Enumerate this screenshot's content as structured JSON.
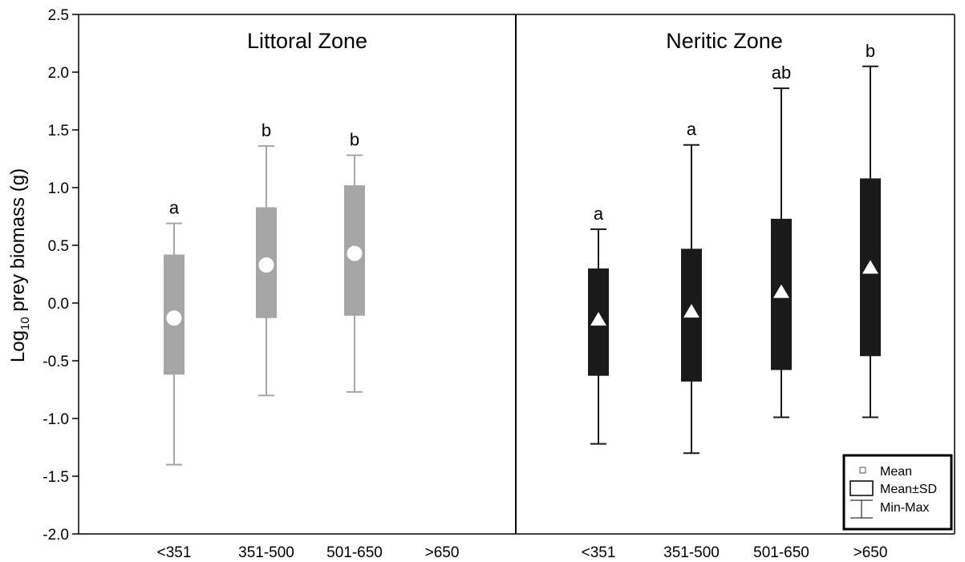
{
  "chart_data": {
    "type": "box",
    "ylabel_main": "Log",
    "ylabel_sub": "10",
    "ylabel_rest": " prey biomass (g)",
    "ylim": [
      -2.0,
      2.5
    ],
    "yticks": [
      "-2.0",
      "-1.5",
      "-1.0",
      "-0.5",
      "0.0",
      "0.5",
      "1.0",
      "1.5",
      "2.0",
      "2.5"
    ],
    "ytick_values": [
      -2.0,
      -1.5,
      -1.0,
      -0.5,
      0.0,
      0.5,
      1.0,
      1.5,
      2.0,
      2.5
    ],
    "categories": [
      "<351",
      "351-500",
      "501-650",
      ">650"
    ],
    "panels": [
      {
        "title": "Littoral Zone",
        "color": "#a6a6a6",
        "marker": "circle",
        "groups": [
          {
            "category": "<351",
            "mean": -0.13,
            "sd_low": -0.62,
            "sd_high": 0.42,
            "min": -1.4,
            "max": 0.69,
            "letter": "a"
          },
          {
            "category": "351-500",
            "mean": 0.33,
            "sd_low": -0.13,
            "sd_high": 0.83,
            "min": -0.8,
            "max": 1.36,
            "letter": "b"
          },
          {
            "category": "501-650",
            "mean": 0.43,
            "sd_low": -0.11,
            "sd_high": 1.02,
            "min": -0.77,
            "max": 1.28,
            "letter": "b"
          }
        ]
      },
      {
        "title": "Neritic Zone",
        "color": "#1a1a1a",
        "marker": "triangle",
        "groups": [
          {
            "category": "<351",
            "mean": -0.14,
            "sd_low": -0.63,
            "sd_high": 0.3,
            "min": -1.22,
            "max": 0.64,
            "letter": "a"
          },
          {
            "category": "351-500",
            "mean": -0.07,
            "sd_low": -0.68,
            "sd_high": 0.47,
            "min": -1.3,
            "max": 1.37,
            "letter": "a"
          },
          {
            "category": "501-650",
            "mean": 0.1,
            "sd_low": -0.58,
            "sd_high": 0.73,
            "min": -0.99,
            "max": 1.86,
            "letter": "ab"
          },
          {
            "category": ">650",
            "mean": 0.31,
            "sd_low": -0.46,
            "sd_high": 1.08,
            "min": -0.99,
            "max": 2.05,
            "letter": "b"
          }
        ]
      }
    ],
    "legend": {
      "placement": "bottom-right",
      "items": [
        "Mean",
        "Mean±SD",
        "Min-Max"
      ]
    }
  }
}
